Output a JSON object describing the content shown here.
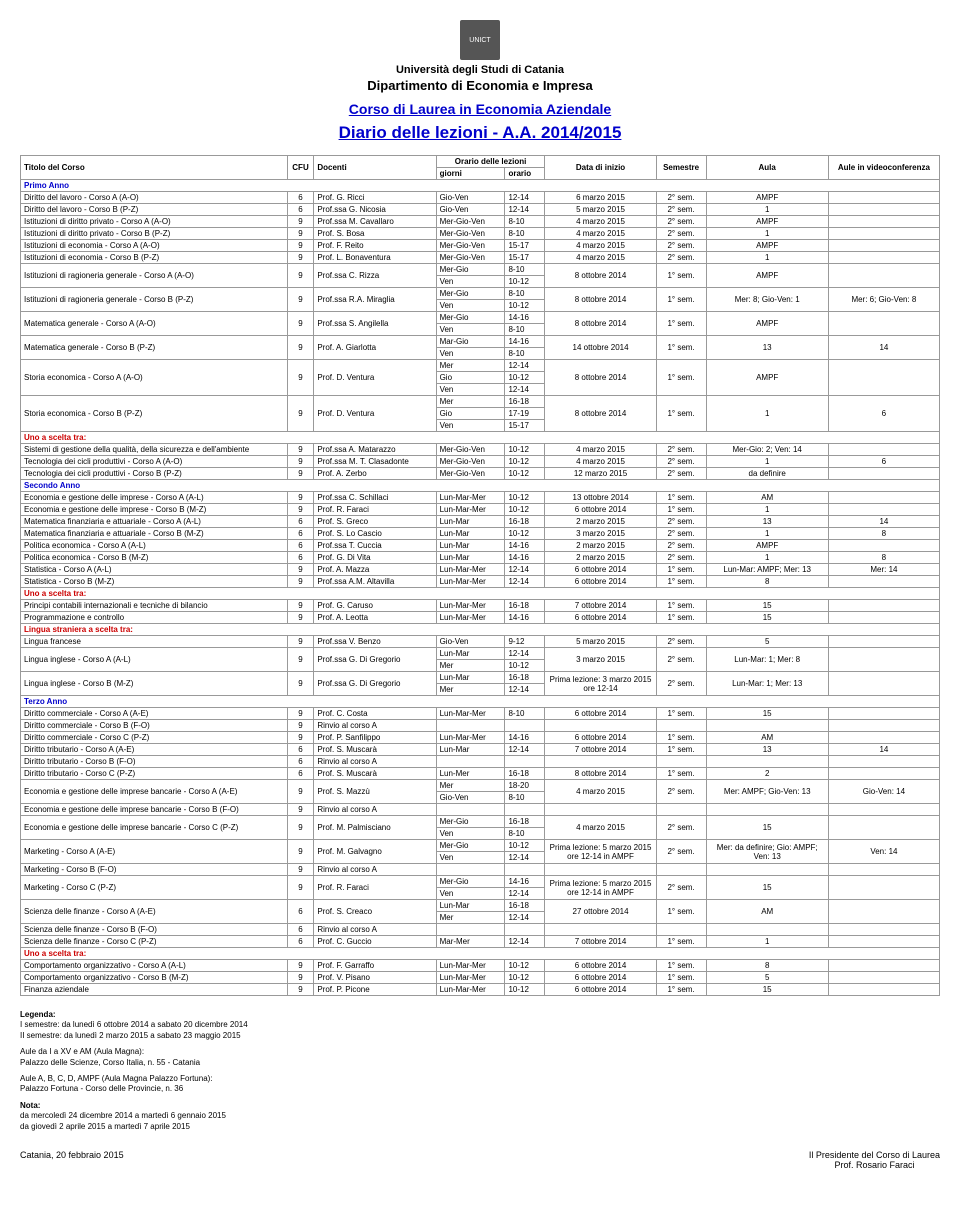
{
  "header": {
    "university": "Università degli Studi di Catania",
    "department": "Dipartimento di Economia e Impresa",
    "course_link": "Corso di Laurea in Economia Aziendale",
    "diario": "Diario delle lezioni  -  A.A. 2014/2015"
  },
  "columns": {
    "title": "Titolo del Corso",
    "cfu": "CFU",
    "docenti": "Docenti",
    "orario": "Orario delle lezioni",
    "giorni": "giorni",
    "orario_h": "orario",
    "data_inizio": "Data di inizio",
    "semestre": "Semestre",
    "aula": "Aula",
    "aule_vc": "Aule in videoconferenza"
  },
  "sections": [
    {
      "label": "Primo Anno",
      "color": "blue"
    },
    {
      "label": "Uno a scelta tra:",
      "color": "red"
    },
    {
      "label": "Secondo Anno",
      "color": "blue"
    },
    {
      "label": "Uno a scelta tra:",
      "color": "red"
    },
    {
      "label": "Lingua straniera a scelta tra:",
      "color": "red"
    },
    {
      "label": "Terzo Anno",
      "color": "blue"
    },
    {
      "label": "Uno a scelta tra:",
      "color": "red"
    }
  ],
  "rows_primo": [
    {
      "t": "Diritto del lavoro - Corso A (A-O)",
      "c": "6",
      "d": "Prof. G. Ricci",
      "sch": [
        [
          "Gio-Ven",
          "12-14"
        ]
      ],
      "di": "6 marzo 2015",
      "s": "2° sem.",
      "a": "AMPF",
      "vc": ""
    },
    {
      "t": "Diritto del lavoro - Corso B (P-Z)",
      "c": "6",
      "d": "Prof.ssa G. Nicosia",
      "sch": [
        [
          "Gio-Ven",
          "12-14"
        ]
      ],
      "di": "5 marzo 2015",
      "s": "2° sem.",
      "a": "1",
      "vc": ""
    },
    {
      "t": "Istituzioni di diritto privato - Corso A (A-O)",
      "c": "9",
      "d": "Prof.ssa M. Cavallaro",
      "sch": [
        [
          "Mer-Gio-Ven",
          "8-10"
        ]
      ],
      "di": "4 marzo 2015",
      "s": "2° sem.",
      "a": "AMPF",
      "vc": ""
    },
    {
      "t": "Istituzioni di diritto privato - Corso B (P-Z)",
      "c": "9",
      "d": "Prof. S. Bosa",
      "sch": [
        [
          "Mer-Gio-Ven",
          "8-10"
        ]
      ],
      "di": "4 marzo 2015",
      "s": "2° sem.",
      "a": "1",
      "vc": ""
    },
    {
      "t": "Istituzioni di economia - Corso A (A-O)",
      "c": "9",
      "d": "Prof. F. Reito",
      "sch": [
        [
          "Mer-Gio-Ven",
          "15-17"
        ]
      ],
      "di": "4 marzo 2015",
      "s": "2° sem.",
      "a": "AMPF",
      "vc": ""
    },
    {
      "t": "Istituzioni di economia - Corso B (P-Z)",
      "c": "9",
      "d": "Prof. L. Bonaventura",
      "sch": [
        [
          "Mer-Gio-Ven",
          "15-17"
        ]
      ],
      "di": "4 marzo 2015",
      "s": "2° sem.",
      "a": "1",
      "vc": ""
    },
    {
      "t": "Istituzioni di ragioneria generale - Corso A (A-O)",
      "c": "9",
      "d": "Prof.ssa C. Rizza",
      "sch": [
        [
          "Mer-Gio",
          "8-10"
        ],
        [
          "Ven",
          "10-12"
        ]
      ],
      "di": "8 ottobre 2014",
      "s": "1° sem.",
      "a": "AMPF",
      "vc": ""
    },
    {
      "t": "Istituzioni di ragioneria generale - Corso B (P-Z)",
      "c": "9",
      "d": "Prof.ssa R.A. Miraglia",
      "sch": [
        [
          "Mer-Gio",
          "8-10"
        ],
        [
          "Ven",
          "10-12"
        ]
      ],
      "di": "8 ottobre 2014",
      "s": "1° sem.",
      "a": "Mer: 8; Gio-Ven: 1",
      "vc": "Mer: 6; Gio-Ven: 8"
    },
    {
      "t": "Matematica generale - Corso A (A-O)",
      "c": "9",
      "d": "Prof.ssa S. Angilella",
      "sch": [
        [
          "Mer-Gio",
          "14-16"
        ],
        [
          "Ven",
          "8-10"
        ]
      ],
      "di": "8 ottobre 2014",
      "s": "1° sem.",
      "a": "AMPF",
      "vc": ""
    },
    {
      "t": "Matematica generale - Corso B (P-Z)",
      "c": "9",
      "d": "Prof. A. Giarlotta",
      "sch": [
        [
          "Mar-Gio",
          "14-16"
        ],
        [
          "Ven",
          "8-10"
        ]
      ],
      "di": "14 ottobre 2014",
      "s": "1° sem.",
      "a": "13",
      "vc": "14"
    },
    {
      "t": "Storia economica - Corso A (A-O)",
      "c": "9",
      "d": "Prof. D. Ventura",
      "sch": [
        [
          "Mer",
          "12-14"
        ],
        [
          "Gio",
          "10-12"
        ],
        [
          "Ven",
          "12-14"
        ]
      ],
      "di": "8 ottobre 2014",
      "s": "1° sem.",
      "a": "AMPF",
      "vc": ""
    },
    {
      "t": "Storia economica - Corso B (P-Z)",
      "c": "9",
      "d": "Prof. D. Ventura",
      "sch": [
        [
          "Mer",
          "16-18"
        ],
        [
          "Gio",
          "17-19"
        ],
        [
          "Ven",
          "15-17"
        ]
      ],
      "di": "8 ottobre 2014",
      "s": "1° sem.",
      "a": "1",
      "vc": "6"
    }
  ],
  "rows_primo_scelta": [
    {
      "t": "Sistemi di gestione della qualità, della sicurezza e dell'ambiente",
      "c": "9",
      "d": "Prof.ssa A. Matarazzo",
      "sch": [
        [
          "Mer-Gio-Ven",
          "10-12"
        ]
      ],
      "di": "4 marzo 2015",
      "s": "2° sem.",
      "a": "Mer-Gio: 2; Ven: 14",
      "vc": ""
    },
    {
      "t": "Tecnologia dei cicli produttivi - Corso A (A-O)",
      "c": "9",
      "d": "Prof.ssa M. T. Clasadonte",
      "sch": [
        [
          "Mer-Gio-Ven",
          "10-12"
        ]
      ],
      "di": "4 marzo 2015",
      "s": "2° sem.",
      "a": "1",
      "vc": "6"
    },
    {
      "t": "Tecnologia dei cicli produttivi - Corso B (P-Z)",
      "c": "9",
      "d": "Prof. A. Zerbo",
      "sch": [
        [
          "Mer-Gio-Ven",
          "10-12"
        ]
      ],
      "di": "12 marzo 2015",
      "s": "2° sem.",
      "a": "da definire",
      "vc": ""
    }
  ],
  "rows_secondo": [
    {
      "t": "Economia e gestione delle imprese - Corso A (A-L)",
      "c": "9",
      "d": "Prof.ssa C. Schillaci",
      "sch": [
        [
          "Lun-Mar-Mer",
          "10-12"
        ]
      ],
      "di": "13 ottobre 2014",
      "s": "1° sem.",
      "a": "AM",
      "vc": ""
    },
    {
      "t": "Economia e gestione delle imprese - Corso B (M-Z)",
      "c": "9",
      "d": "Prof. R. Faraci",
      "sch": [
        [
          "Lun-Mar-Mer",
          "10-12"
        ]
      ],
      "di": "6 ottobre 2014",
      "s": "1° sem.",
      "a": "1",
      "vc": ""
    },
    {
      "t": "Matematica finanziaria e attuariale - Corso A (A-L)",
      "c": "6",
      "d": "Prof. S. Greco",
      "sch": [
        [
          "Lun-Mar",
          "16-18"
        ]
      ],
      "di": "2 marzo 2015",
      "s": "2° sem.",
      "a": "13",
      "vc": "14"
    },
    {
      "t": "Matematica finanziaria e attuariale - Corso B (M-Z)",
      "c": "6",
      "d": "Prof. S. Lo Cascio",
      "sch": [
        [
          "Lun-Mar",
          "10-12"
        ]
      ],
      "di": "3 marzo 2015",
      "s": "2° sem.",
      "a": "1",
      "vc": "8"
    },
    {
      "t": "Politica economica - Corso A (A-L)",
      "c": "6",
      "d": "Prof.ssa T. Cuccia",
      "sch": [
        [
          "Lun-Mar",
          "14-16"
        ]
      ],
      "di": "2 marzo 2015",
      "s": "2° sem.",
      "a": "AMPF",
      "vc": ""
    },
    {
      "t": "Politica economica - Corso B (M-Z)",
      "c": "6",
      "d": "Prof. G. Di Vita",
      "sch": [
        [
          "Lun-Mar",
          "14-16"
        ]
      ],
      "di": "2 marzo 2015",
      "s": "2° sem.",
      "a": "1",
      "vc": "8"
    },
    {
      "t": "Statistica - Corso A (A-L)",
      "c": "9",
      "d": "Prof. A. Mazza",
      "sch": [
        [
          "Lun-Mar-Mer",
          "12-14"
        ]
      ],
      "di": "6 ottobre 2014",
      "s": "1° sem.",
      "a": "Lun-Mar: AMPF; Mer: 13",
      "vc": "Mer: 14"
    },
    {
      "t": "Statistica - Corso B (M-Z)",
      "c": "9",
      "d": "Prof.ssa A.M. Altavilla",
      "sch": [
        [
          "Lun-Mar-Mer",
          "12-14"
        ]
      ],
      "di": "6 ottobre 2014",
      "s": "1° sem.",
      "a": "8",
      "vc": ""
    }
  ],
  "rows_secondo_scelta": [
    {
      "t": "Principi contabili internazionali e tecniche di bilancio",
      "c": "9",
      "d": "Prof. G. Caruso",
      "sch": [
        [
          "Lun-Mar-Mer",
          "16-18"
        ]
      ],
      "di": "7 ottobre 2014",
      "s": "1° sem.",
      "a": "15",
      "vc": ""
    },
    {
      "t": "Programmazione e controllo",
      "c": "9",
      "d": "Prof. A. Leotta",
      "sch": [
        [
          "Lun-Mar-Mer",
          "14-16"
        ]
      ],
      "di": "6 ottobre 2014",
      "s": "1° sem.",
      "a": "15",
      "vc": ""
    }
  ],
  "rows_secondo_lingua": [
    {
      "t": "Lingua francese",
      "c": "9",
      "d": "Prof.ssa V. Benzo",
      "sch": [
        [
          "Gio-Ven",
          "9-12"
        ]
      ],
      "di": "5 marzo 2015",
      "s": "2° sem.",
      "a": "5",
      "vc": ""
    },
    {
      "t": "Lingua inglese - Corso A (A-L)",
      "c": "9",
      "d": "Prof.ssa G. Di Gregorio",
      "sch": [
        [
          "Lun-Mar",
          "12-14"
        ],
        [
          "Mer",
          "10-12"
        ]
      ],
      "di": "3 marzo 2015",
      "s": "2° sem.",
      "a": "Lun-Mar: 1; Mer: 8",
      "vc": ""
    },
    {
      "t": "Lingua inglese - Corso B (M-Z)",
      "c": "9",
      "d": "Prof.ssa G. Di Gregorio",
      "sch": [
        [
          "Lun-Mar",
          "16-18"
        ],
        [
          "Mer",
          "12-14"
        ]
      ],
      "di": "Prima lezione: 3 marzo 2015 ore 12-14",
      "s": "2° sem.",
      "a": "Lun-Mar: 1; Mer: 13",
      "vc": ""
    }
  ],
  "rows_terzo": [
    {
      "t": "Diritto commerciale - Corso A (A-E)",
      "c": "9",
      "d": "Prof. C. Costa",
      "sch": [
        [
          "Lun-Mar-Mer",
          "8-10"
        ]
      ],
      "di": "6 ottobre 2014",
      "s": "1° sem.",
      "a": "15",
      "vc": ""
    },
    {
      "t": "Diritto commerciale - Corso B (F-O)",
      "c": "9",
      "d": "Rinvio al corso A",
      "sch": [
        [
          "",
          ""
        ]
      ],
      "di": "",
      "s": "",
      "a": "",
      "vc": ""
    },
    {
      "t": "Diritto commerciale - Corso C (P-Z)",
      "c": "9",
      "d": "Prof. P. Sanfilippo",
      "sch": [
        [
          "Lun-Mar-Mer",
          "14-16"
        ]
      ],
      "di": "6 ottobre 2014",
      "s": "1° sem.",
      "a": "AM",
      "vc": ""
    },
    {
      "t": "Diritto tributario - Corso A (A-E)",
      "c": "6",
      "d": "Prof. S. Muscarà",
      "sch": [
        [
          "Lun-Mar",
          "12-14"
        ]
      ],
      "di": "7 ottobre 2014",
      "s": "1° sem.",
      "a": "13",
      "vc": "14"
    },
    {
      "t": "Diritto tributario - Corso B (F-O)",
      "c": "6",
      "d": "Rinvio al corso A",
      "sch": [
        [
          "",
          ""
        ]
      ],
      "di": "",
      "s": "",
      "a": "",
      "vc": ""
    },
    {
      "t": "Diritto tributario - Corso C (P-Z)",
      "c": "6",
      "d": "Prof. S. Muscarà",
      "sch": [
        [
          "Lun-Mer",
          "16-18"
        ]
      ],
      "di": "8 ottobre 2014",
      "s": "1° sem.",
      "a": "2",
      "vc": ""
    },
    {
      "t": "Economia e gestione delle imprese bancarie - Corso A (A-E)",
      "c": "9",
      "d": "Prof. S. Mazzù",
      "sch": [
        [
          "Mer",
          "18-20"
        ],
        [
          "Gio-Ven",
          "8-10"
        ]
      ],
      "di": "4 marzo 2015",
      "s": "2° sem.",
      "a": "Mer: AMPF; Gio-Ven: 13",
      "vc": "Gio-Ven: 14"
    },
    {
      "t": "Economia e gestione delle imprese bancarie - Corso B (F-O)",
      "c": "9",
      "d": "Rinvio al corso A",
      "sch": [
        [
          "",
          ""
        ]
      ],
      "di": "",
      "s": "",
      "a": "",
      "vc": ""
    },
    {
      "t": "Economia e gestione delle imprese bancarie - Corso C (P-Z)",
      "c": "9",
      "d": "Prof. M. Palmisciano",
      "sch": [
        [
          "Mer-Gio",
          "16-18"
        ],
        [
          "Ven",
          "8-10"
        ]
      ],
      "di": "4 marzo 2015",
      "s": "2° sem.",
      "a": "15",
      "vc": ""
    },
    {
      "t": "Marketing - Corso A (A-E)",
      "c": "9",
      "d": "Prof. M. Galvagno",
      "sch": [
        [
          "Mer-Gio",
          "10-12"
        ],
        [
          "Ven",
          "12-14"
        ]
      ],
      "di": "Prima lezione: 5 marzo 2015 ore 12-14 in AMPF",
      "s": "2° sem.",
      "a": "Mer: da definire; Gio: AMPF; Ven: 13",
      "vc": "Ven: 14"
    },
    {
      "t": "Marketing - Corso B (F-O)",
      "c": "9",
      "d": "Rinvio al corso A",
      "sch": [
        [
          "",
          ""
        ]
      ],
      "di": "",
      "s": "",
      "a": "",
      "vc": ""
    },
    {
      "t": "Marketing - Corso C (P-Z)",
      "c": "9",
      "d": "Prof. R. Faraci",
      "sch": [
        [
          "Mer-Gio",
          "14-16"
        ],
        [
          "Ven",
          "12-14"
        ]
      ],
      "di": "Prima lezione: 5 marzo 2015 ore 12-14 in AMPF",
      "s": "2° sem.",
      "a": "15",
      "vc": ""
    },
    {
      "t": "Scienza delle finanze - Corso A (A-E)",
      "c": "6",
      "d": "Prof. S. Creaco",
      "sch": [
        [
          "Lun-Mar",
          "16-18"
        ],
        [
          "Mer",
          "12-14"
        ]
      ],
      "di": "27 ottobre 2014",
      "s": "1° sem.",
      "a": "AM",
      "vc": ""
    },
    {
      "t": "Scienza delle finanze - Corso B (F-O)",
      "c": "6",
      "d": "Rinvio al corso A",
      "sch": [
        [
          "",
          ""
        ]
      ],
      "di": "",
      "s": "",
      "a": "",
      "vc": ""
    },
    {
      "t": "Scienza delle finanze - Corso C (P-Z)",
      "c": "6",
      "d": "Prof. C. Guccio",
      "sch": [
        [
          "Mar-Mer",
          "12-14"
        ]
      ],
      "di": "7 ottobre 2014",
      "s": "1° sem.",
      "a": "1",
      "vc": ""
    }
  ],
  "rows_terzo_scelta": [
    {
      "t": "Comportamento organizzativo - Corso A (A-L)",
      "c": "9",
      "d": "Prof. F. Garraffo",
      "sch": [
        [
          "Lun-Mar-Mer",
          "10-12"
        ]
      ],
      "di": "6 ottobre 2014",
      "s": "1° sem.",
      "a": "8",
      "vc": ""
    },
    {
      "t": "Comportamento organizzativo - Corso B (M-Z)",
      "c": "9",
      "d": "Prof. V. Pisano",
      "sch": [
        [
          "Lun-Mar-Mer",
          "10-12"
        ]
      ],
      "di": "6 ottobre 2014",
      "s": "1° sem.",
      "a": "5",
      "vc": ""
    },
    {
      "t": "Finanza aziendale",
      "c": "9",
      "d": "Prof. P. Picone",
      "sch": [
        [
          "Lun-Mar-Mer",
          "10-12"
        ]
      ],
      "di": "6 ottobre 2014",
      "s": "1° sem.",
      "a": "15",
      "vc": ""
    }
  ],
  "legend": {
    "title": "Legenda:",
    "l1": "I semestre: da lunedì 6 ottobre 2014 a sabato 20 dicembre 2014",
    "l2": "II semestre: da lunedì 2 marzo 2015 a sabato 23 maggio 2015",
    "aule1_title": "Aule da I a XV e AM (Aula Magna):",
    "aule1": "Palazzo delle Scienze, Corso Italia, n. 55 - Catania",
    "aule2_title": "Aule A, B, C, D, AMPF (Aula Magna Palazzo Fortuna):",
    "aule2": "Palazzo Fortuna - Corso delle Provincie, n. 36",
    "nota_title": "Nota:",
    "nota1": "da mercoledì 24 dicembre 2014 a martedì 6 gennaio 2015",
    "nota2": "da giovedì 2 aprile 2015 a martedì 7 aprile 2015"
  },
  "footer": {
    "left": "Catania, 20 febbraio 2015",
    "right1": "Il Presidente del Corso di Laurea",
    "right2": "Prof. Rosario Faraci"
  }
}
